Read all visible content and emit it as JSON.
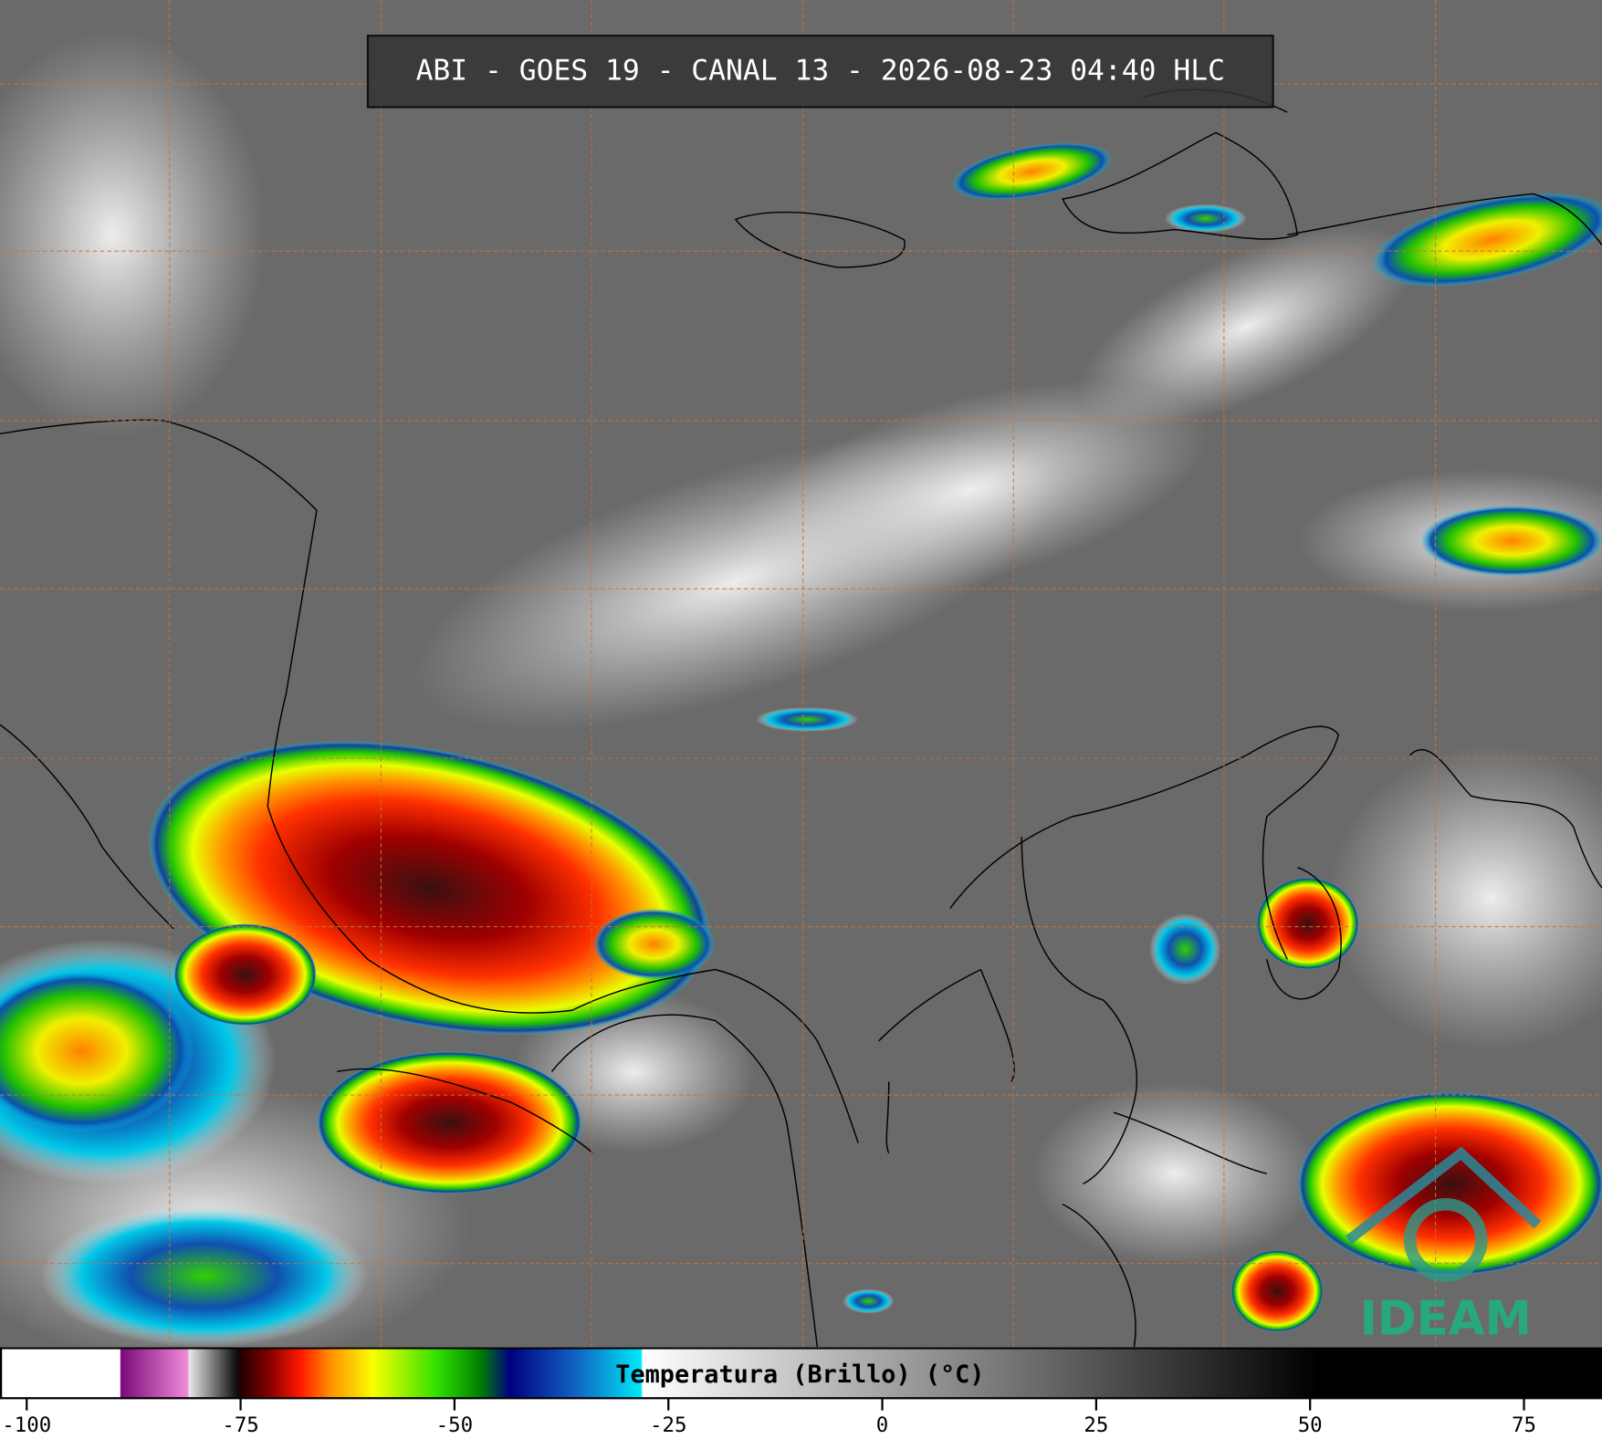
{
  "title": "ABI - GOES 19 - CANAL 13 - 2026-08-23 04:40 HLC",
  "logo": "IDEAM",
  "colorbar": {
    "label": "Temperatura (Brillo) (°C)",
    "range": [
      -103,
      84
    ],
    "ticks": [
      -100,
      -75,
      -50,
      -25,
      0,
      25,
      50,
      75
    ],
    "stops": [
      {
        "value": -103,
        "color": "#ffffff"
      },
      {
        "value": -89.1,
        "color": "#ffffff"
      },
      {
        "value": -89,
        "color": "#7a0a7a"
      },
      {
        "value": -81.2,
        "color": "#f08ad8"
      },
      {
        "value": -81,
        "color": "#e8e8e8"
      },
      {
        "value": -75.5,
        "color": "#101010"
      },
      {
        "value": -75,
        "color": "#200000"
      },
      {
        "value": -71.5,
        "color": "#8a0000"
      },
      {
        "value": -68,
        "color": "#ff1800"
      },
      {
        "value": -64.5,
        "color": "#ff9000"
      },
      {
        "value": -59.5,
        "color": "#f8ff00"
      },
      {
        "value": -52,
        "color": "#30e000"
      },
      {
        "value": -47,
        "color": "#008000"
      },
      {
        "value": -43.5,
        "color": "#000080"
      },
      {
        "value": -36,
        "color": "#1060c0"
      },
      {
        "value": -28.2,
        "color": "#00e8f8"
      },
      {
        "value": -28,
        "color": "#ffffff"
      },
      {
        "value": 51,
        "color": "#000000"
      },
      {
        "value": 84,
        "color": "#000000"
      }
    ]
  }
}
